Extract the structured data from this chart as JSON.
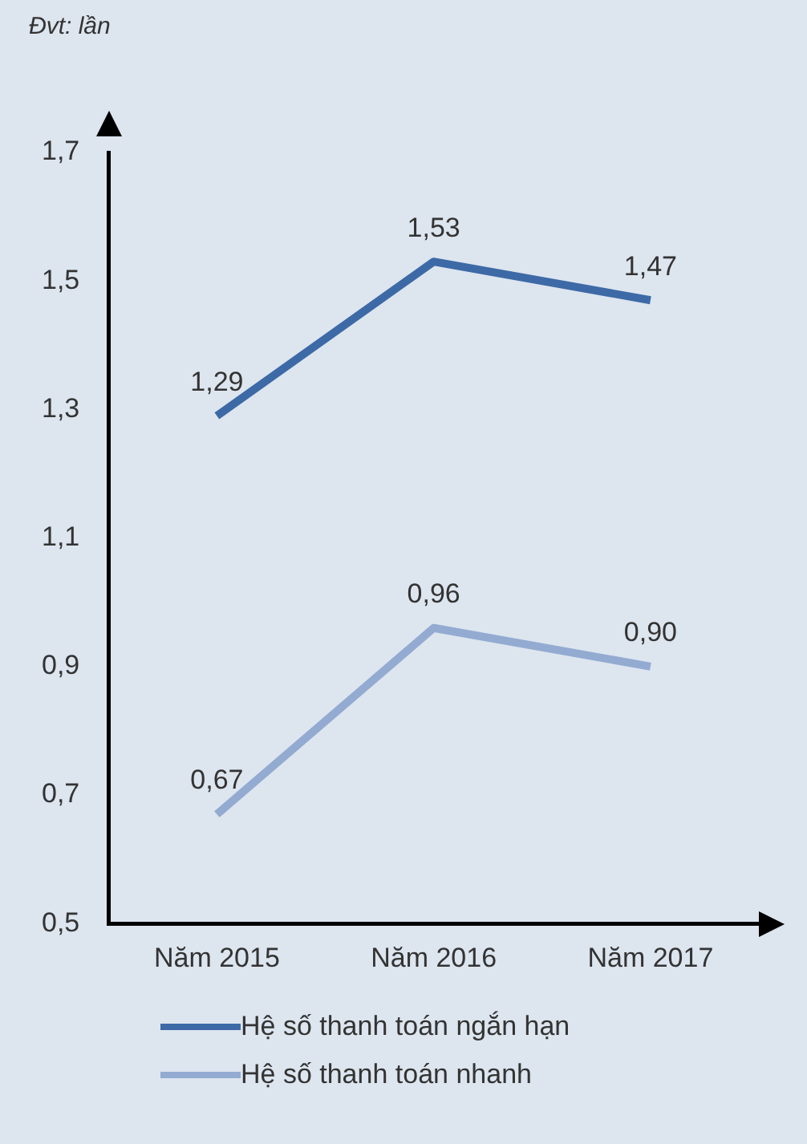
{
  "chart_data": {
    "type": "line",
    "annotations": [
      "Đvt: lần"
    ],
    "categories": [
      "Năm 2015",
      "Năm 2016",
      "Năm 2017"
    ],
    "series": [
      {
        "name": "Hệ số thanh toán ngắn hạn",
        "color": "#3d6aa6",
        "values": [
          1.29,
          1.53,
          1.47
        ],
        "value_labels": [
          "1,29",
          "1,53",
          "1,47"
        ]
      },
      {
        "name": "Hệ số thanh toán nhanh",
        "color": "#93abd1",
        "values": [
          0.67,
          0.96,
          0.9
        ],
        "value_labels": [
          "0,67",
          "0,96",
          "0,90"
        ]
      }
    ],
    "ylim": [
      0.5,
      1.7
    ],
    "yticks": [
      {
        "value": 0.5,
        "label": "0,5"
      },
      {
        "value": 0.7,
        "label": "0,7"
      },
      {
        "value": 0.9,
        "label": "0,9"
      },
      {
        "value": 1.1,
        "label": "1,1"
      },
      {
        "value": 1.3,
        "label": "1,3"
      },
      {
        "value": 1.5,
        "label": "1,5"
      },
      {
        "value": 1.7,
        "label": "1,7"
      }
    ],
    "grid": false,
    "legend": "bottom",
    "marker": "none",
    "line_style": "solid"
  }
}
